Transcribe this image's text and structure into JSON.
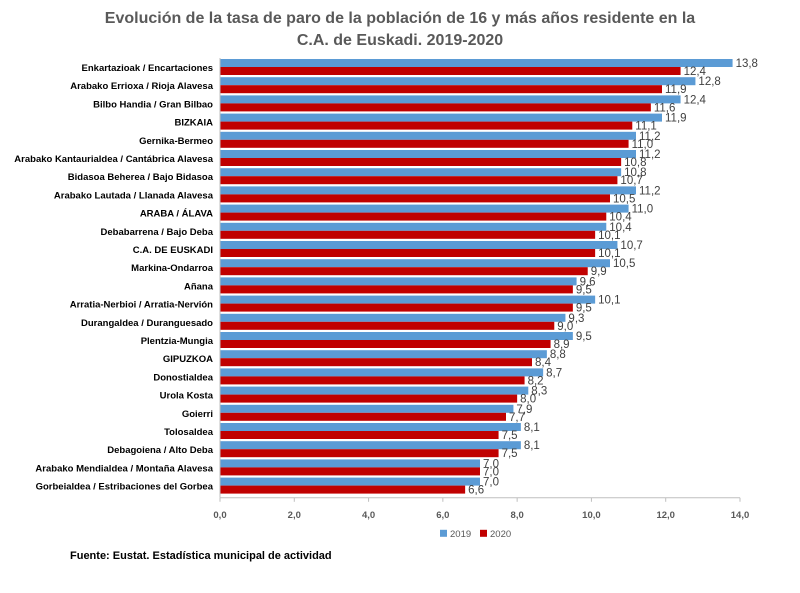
{
  "chart_data": {
    "type": "bar",
    "orientation": "horizontal",
    "title": [
      "Evolución de la tasa de paro de la población de 16 y más años residente en la",
      "C.A. de Euskadi. 2019-2020"
    ],
    "categories": [
      "Enkartazioak / Encartaciones",
      "Arabako Errioxa / Rioja Alavesa",
      "Bilbo Handia / Gran Bilbao",
      "BIZKAIA",
      "Gernika-Bermeo",
      "Arabako Kantaurialdea / Cantábrica Alavesa",
      "Bidasoa Beherea / Bajo Bidasoa",
      "Arabako Lautada / Llanada Alavesa",
      "ARABA / ÁLAVA",
      "Debabarrena / Bajo Deba",
      "C.A. DE EUSKADI",
      "Markina-Ondarroa",
      "Añana",
      "Arratia-Nerbioi / Arratia-Nervión",
      "Durangaldea / Duranguesado",
      "Plentzia-Mungia",
      "GIPUZKOA",
      "Donostialdea",
      "Urola Kosta",
      "Goierri",
      "Tolosaldea",
      "Debagoiena / Alto Deba",
      "Arabako Mendialdea / Montaña Alavesa",
      "Gorbeialdea / Estribaciones del Gorbea"
    ],
    "series": [
      {
        "name": "2019",
        "color": "#5B9BD5",
        "values": [
          13.8,
          12.8,
          12.4,
          11.9,
          11.2,
          11.2,
          10.8,
          11.2,
          11.0,
          10.4,
          10.7,
          10.5,
          9.6,
          10.1,
          9.3,
          9.5,
          8.8,
          8.7,
          8.3,
          7.9,
          8.1,
          8.1,
          7.0,
          7.0
        ]
      },
      {
        "name": "2020",
        "color": "#C00000",
        "values": [
          12.4,
          11.9,
          11.6,
          11.1,
          11.0,
          10.8,
          10.7,
          10.5,
          10.4,
          10.1,
          10.1,
          9.9,
          9.5,
          9.5,
          9.0,
          8.9,
          8.4,
          8.2,
          8.0,
          7.7,
          7.5,
          7.5,
          7.0,
          6.6
        ]
      }
    ],
    "xlim": [
      0,
      14
    ],
    "xticks": [
      "0,0",
      "2,0",
      "4,0",
      "6,0",
      "8,0",
      "10,0",
      "12,0",
      "14,0"
    ],
    "xlabel": "",
    "ylabel": "",
    "legend": "bottom",
    "grid": false,
    "decimal_separator": ","
  },
  "source": "Fuente: Eustat. Estadística municipal de actividad"
}
